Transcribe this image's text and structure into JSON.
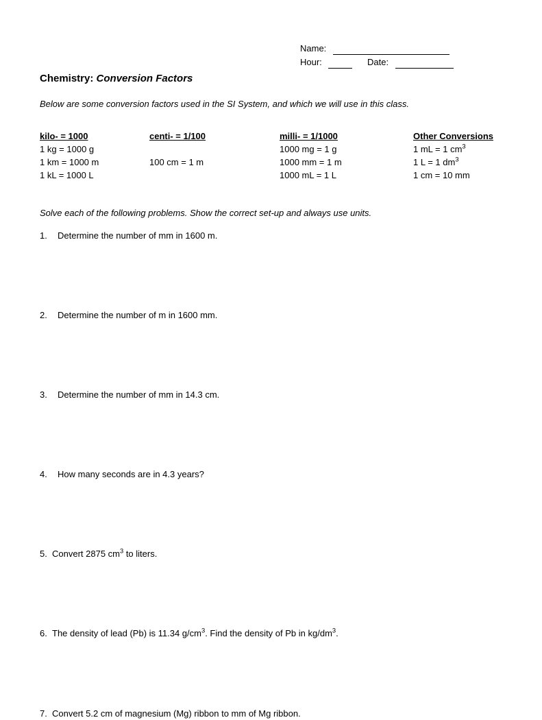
{
  "header": {
    "name_label": "Name:",
    "hour_label": "Hour:",
    "date_label": "Date:"
  },
  "title": {
    "prefix": "Chemistry:  ",
    "subject": "Conversion Factors"
  },
  "intro": "Below are some conversion factors used in the SI System, and which we will use in this class.",
  "columns": {
    "c1": {
      "head": "kilo- = 1000",
      "rows": [
        "1 kg = 1000 g",
        "1 km = 1000 m",
        "1 kL = 1000 L"
      ]
    },
    "c2": {
      "head": "centi- = 1/100",
      "rows": [
        "",
        "100 cm = 1 m",
        ""
      ]
    },
    "c3": {
      "head": "milli- = 1/1000",
      "rows": [
        "1000 mg = 1 g",
        "1000 mm = 1 m",
        "1000 mL = 1 L"
      ]
    },
    "c4": {
      "head": "Other Conversions",
      "rows_html": [
        "1 mL = 1 cm<sup>3</sup>",
        "1 L = 1 dm<sup>3</sup>",
        "1 cm = 10 mm"
      ]
    }
  },
  "solve": "Solve each of the following problems.  Show the correct set-up and always use units.",
  "problems": [
    {
      "n": "1.",
      "text": "Determine the number of mm in 1600 m.",
      "indent": true
    },
    {
      "n": "2.",
      "text": "Determine the number of m in 1600 mm.",
      "indent": true
    },
    {
      "n": "3.",
      "text": "Determine the number of mm in 14.3 cm.",
      "indent": true
    },
    {
      "n": "4.",
      "text": "How many seconds are in 4.3 years?",
      "indent": true
    },
    {
      "n": "5.",
      "html": "Convert 2875 cm<sup>3</sup> to liters.",
      "indent": false
    },
    {
      "n": "6.",
      "html": "The density of lead (Pb) is 11.34 g/cm<sup>3</sup>.  Find the density of Pb in kg/dm<sup>3</sup>.",
      "indent": false
    },
    {
      "n": "7.",
      "text": "Convert 5.2 cm of magnesium (Mg) ribbon to mm of Mg ribbon.",
      "indent": false
    }
  ]
}
